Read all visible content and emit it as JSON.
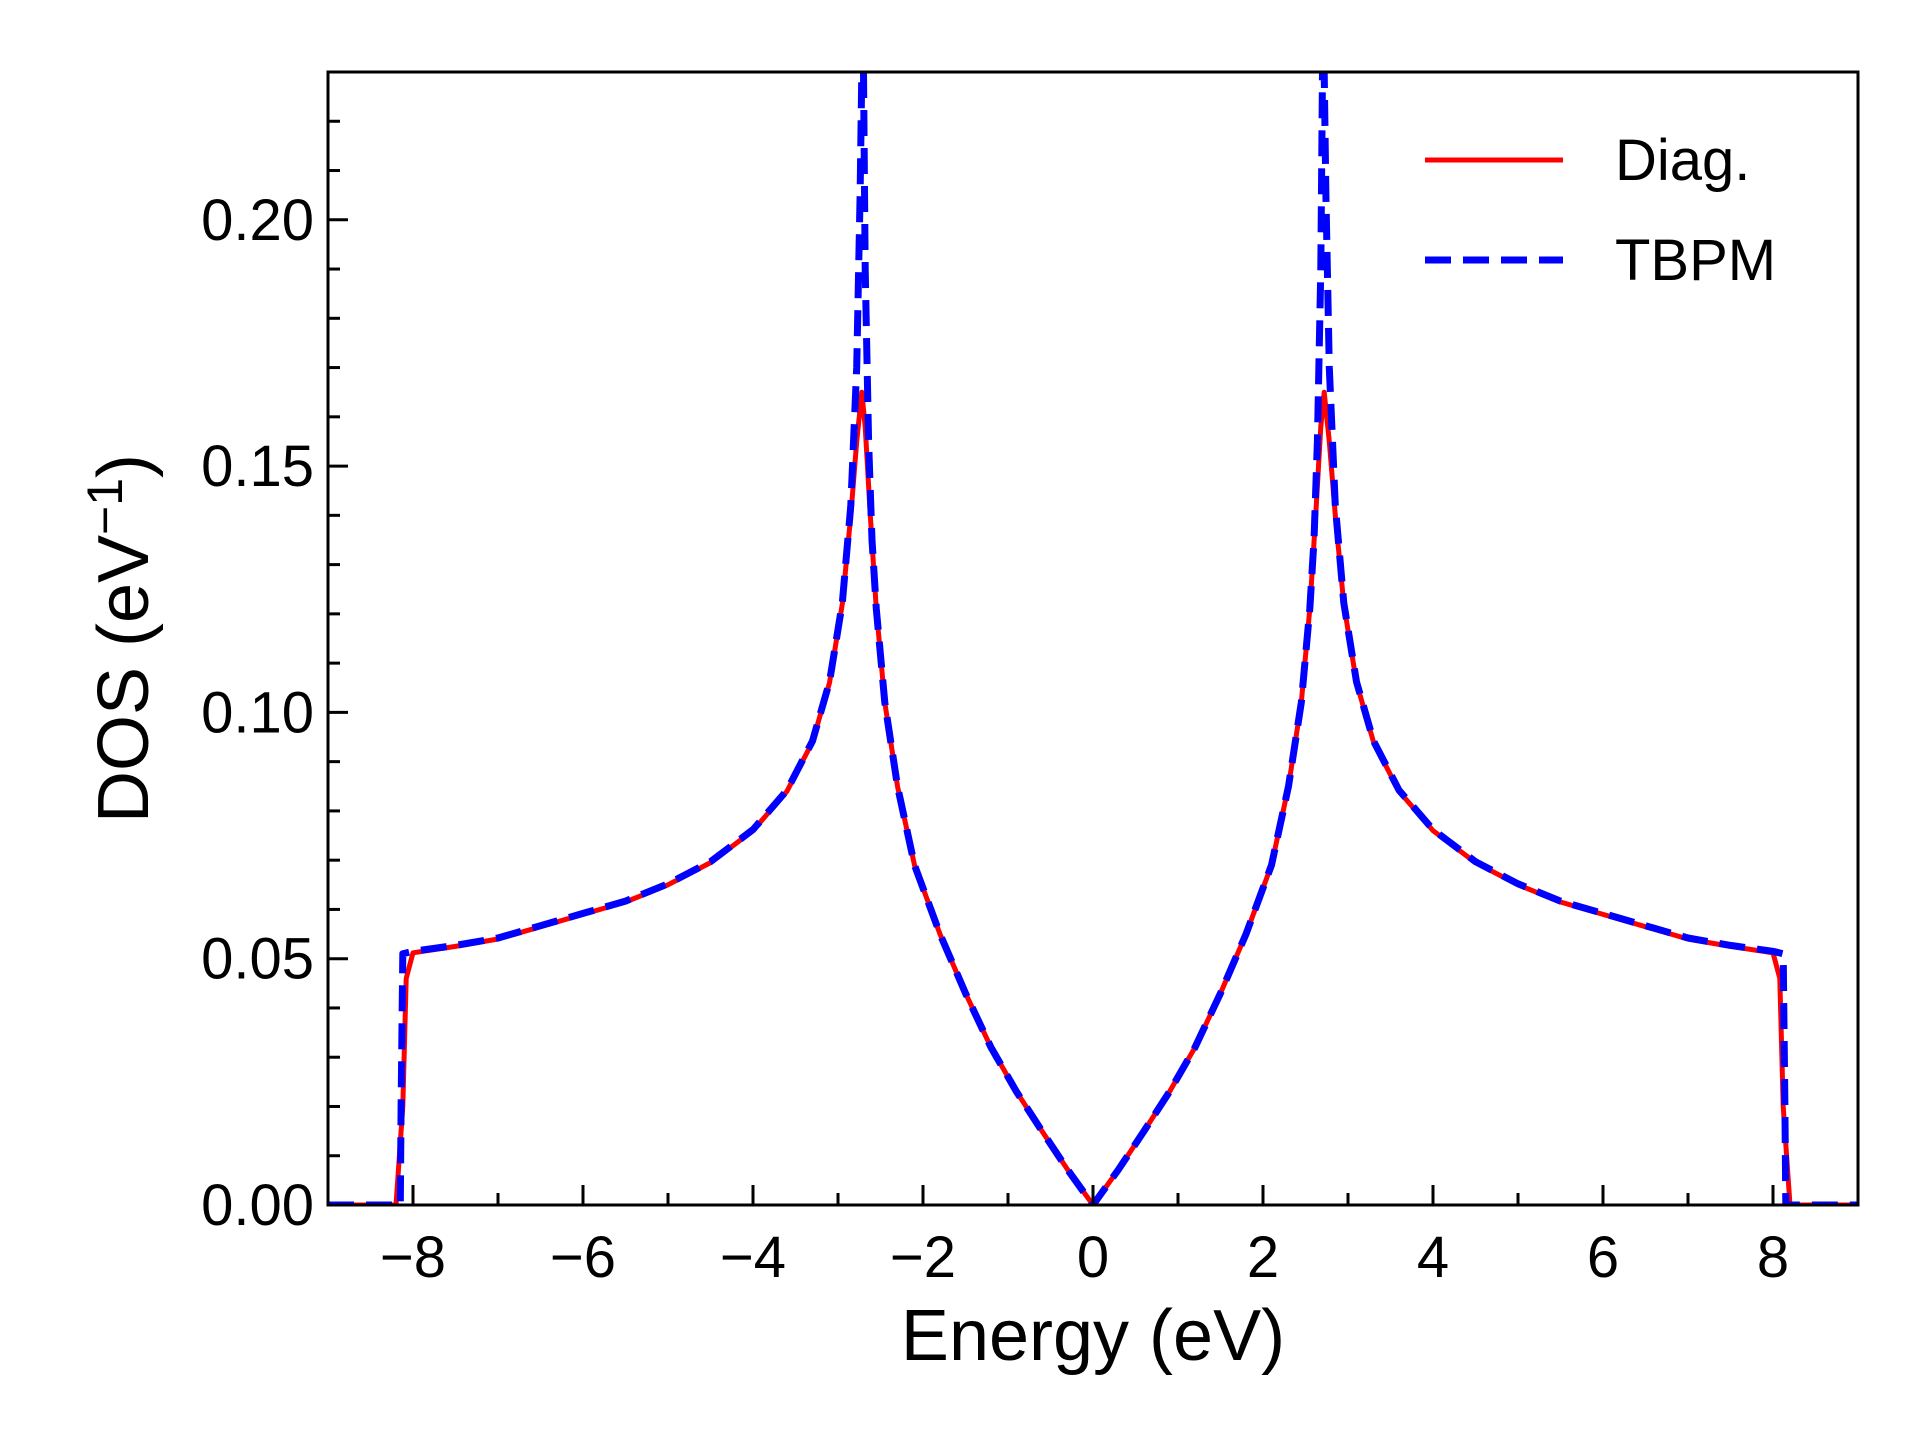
{
  "chart_data": {
    "type": "line",
    "title": "",
    "xlabel": "Energy (eV)",
    "ylabel": "DOS (eV",
    "ylabel_sup": "−1",
    "ylabel_close": ")",
    "xlim": [
      -9,
      9
    ],
    "ylim": [
      0,
      0.23
    ],
    "xticks": [
      -8,
      -6,
      -4,
      -2,
      0,
      2,
      4,
      6,
      8
    ],
    "xtick_labels": [
      "−8",
      "−6",
      "−4",
      "−2",
      "0",
      "2",
      "4",
      "6",
      "8"
    ],
    "yticks": [
      0.0,
      0.05,
      0.1,
      0.15,
      0.2
    ],
    "ytick_labels": [
      "0.00",
      "0.05",
      "0.10",
      "0.15",
      "0.20"
    ],
    "grid": false,
    "legend_position": "top-right",
    "series": [
      {
        "name": "Diag.",
        "color": "#ff0000",
        "style": "solid",
        "points": [
          [
            -9,
            0
          ],
          [
            -8.2,
            0
          ],
          [
            -8.12,
            0.02
          ],
          [
            -8.08,
            0.046
          ],
          [
            -8.0,
            0.0512
          ],
          [
            -7.5,
            0.0525
          ],
          [
            -7.0,
            0.054
          ],
          [
            -6.5,
            0.0565
          ],
          [
            -6.0,
            0.059
          ],
          [
            -5.5,
            0.0615
          ],
          [
            -5.0,
            0.065
          ],
          [
            -4.5,
            0.0695
          ],
          [
            -4.0,
            0.076
          ],
          [
            -3.6,
            0.084
          ],
          [
            -3.3,
            0.094
          ],
          [
            -3.1,
            0.106
          ],
          [
            -2.95,
            0.122
          ],
          [
            -2.85,
            0.14
          ],
          [
            -2.78,
            0.155
          ],
          [
            -2.72,
            0.165
          ],
          [
            -2.68,
            0.158
          ],
          [
            -2.62,
            0.14
          ],
          [
            -2.55,
            0.121
          ],
          [
            -2.45,
            0.102
          ],
          [
            -2.3,
            0.085
          ],
          [
            -2.1,
            0.069
          ],
          [
            -1.8,
            0.055
          ],
          [
            -1.5,
            0.043
          ],
          [
            -1.2,
            0.032
          ],
          [
            -0.9,
            0.023
          ],
          [
            -0.6,
            0.015
          ],
          [
            -0.3,
            0.0072
          ],
          [
            0,
            0
          ],
          [
            0.3,
            0.0072
          ],
          [
            0.6,
            0.015
          ],
          [
            0.9,
            0.023
          ],
          [
            1.2,
            0.032
          ],
          [
            1.5,
            0.043
          ],
          [
            1.8,
            0.055
          ],
          [
            2.1,
            0.069
          ],
          [
            2.3,
            0.085
          ],
          [
            2.45,
            0.102
          ],
          [
            2.55,
            0.121
          ],
          [
            2.62,
            0.14
          ],
          [
            2.68,
            0.158
          ],
          [
            2.72,
            0.165
          ],
          [
            2.78,
            0.155
          ],
          [
            2.85,
            0.14
          ],
          [
            2.95,
            0.122
          ],
          [
            3.1,
            0.106
          ],
          [
            3.3,
            0.094
          ],
          [
            3.6,
            0.084
          ],
          [
            4.0,
            0.076
          ],
          [
            4.5,
            0.0695
          ],
          [
            5.0,
            0.065
          ],
          [
            5.5,
            0.0615
          ],
          [
            6.0,
            0.059
          ],
          [
            6.5,
            0.0565
          ],
          [
            7.0,
            0.054
          ],
          [
            7.5,
            0.0525
          ],
          [
            8.0,
            0.0512
          ],
          [
            8.08,
            0.046
          ],
          [
            8.12,
            0.02
          ],
          [
            8.2,
            0
          ],
          [
            9,
            0
          ]
        ]
      },
      {
        "name": "TBPM",
        "color": "#0000ff",
        "style": "dashed",
        "points": [
          [
            -9,
            0
          ],
          [
            -8.15,
            0
          ],
          [
            -8.14,
            0.02
          ],
          [
            -8.12,
            0.051
          ],
          [
            -8.0,
            0.0515
          ],
          [
            -7.5,
            0.0527
          ],
          [
            -7.0,
            0.0542
          ],
          [
            -6.5,
            0.0567
          ],
          [
            -6.0,
            0.0592
          ],
          [
            -5.5,
            0.0617
          ],
          [
            -5.0,
            0.0652
          ],
          [
            -4.5,
            0.0697
          ],
          [
            -4.0,
            0.0762
          ],
          [
            -3.6,
            0.0842
          ],
          [
            -3.3,
            0.0942
          ],
          [
            -3.1,
            0.1062
          ],
          [
            -2.95,
            0.1222
          ],
          [
            -2.85,
            0.142
          ],
          [
            -2.78,
            0.17
          ],
          [
            -2.74,
            0.205
          ],
          [
            -2.72,
            0.23
          ],
          [
            -2.7,
            0.23
          ],
          [
            -2.68,
            0.19
          ],
          [
            -2.64,
            0.155
          ],
          [
            -2.6,
            0.135
          ],
          [
            -2.55,
            0.121
          ],
          [
            -2.45,
            0.102
          ],
          [
            -2.3,
            0.085
          ],
          [
            -2.1,
            0.069
          ],
          [
            -1.8,
            0.055
          ],
          [
            -1.5,
            0.043
          ],
          [
            -1.2,
            0.032
          ],
          [
            -0.9,
            0.023
          ],
          [
            -0.6,
            0.015
          ],
          [
            -0.3,
            0.0072
          ],
          [
            0,
            0
          ],
          [
            0.3,
            0.0072
          ],
          [
            0.6,
            0.015
          ],
          [
            0.9,
            0.023
          ],
          [
            1.2,
            0.032
          ],
          [
            1.5,
            0.043
          ],
          [
            1.8,
            0.055
          ],
          [
            2.1,
            0.069
          ],
          [
            2.3,
            0.085
          ],
          [
            2.45,
            0.102
          ],
          [
            2.55,
            0.121
          ],
          [
            2.6,
            0.135
          ],
          [
            2.64,
            0.155
          ],
          [
            2.68,
            0.19
          ],
          [
            2.7,
            0.23
          ],
          [
            2.72,
            0.23
          ],
          [
            2.74,
            0.205
          ],
          [
            2.78,
            0.17
          ],
          [
            2.85,
            0.142
          ],
          [
            2.95,
            0.1222
          ],
          [
            3.1,
            0.1062
          ],
          [
            3.3,
            0.0942
          ],
          [
            3.6,
            0.0842
          ],
          [
            4.0,
            0.0762
          ],
          [
            4.5,
            0.0697
          ],
          [
            5.0,
            0.0652
          ],
          [
            5.5,
            0.0617
          ],
          [
            6.0,
            0.0592
          ],
          [
            6.5,
            0.0567
          ],
          [
            7.0,
            0.0542
          ],
          [
            7.5,
            0.0527
          ],
          [
            8.0,
            0.0515
          ],
          [
            8.12,
            0.051
          ],
          [
            8.14,
            0.02
          ],
          [
            8.15,
            0
          ],
          [
            9,
            0
          ]
        ]
      }
    ]
  }
}
